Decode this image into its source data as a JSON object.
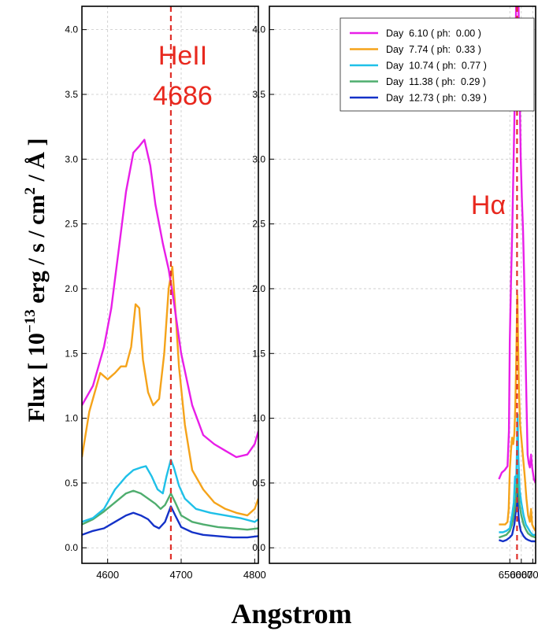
{
  "figure": {
    "ylabel_parts": [
      "Flux [ 10",
      "−13",
      " erg / s / cm",
      "2",
      " / Å ]"
    ],
    "xlabel": "Angstrom",
    "ylim": [
      -0.12,
      4.18
    ],
    "yticks": [
      0.0,
      0.5,
      1.0,
      1.5,
      2.0,
      2.5,
      3.0,
      3.5,
      4.0
    ],
    "ytick_labels": [
      "0.0",
      "0.5",
      "1.0",
      "1.5",
      "2.0",
      "2.5",
      "3.0",
      "3.5",
      "4.0"
    ],
    "grid": true,
    "legend_placement": "top-right of right panel",
    "colors": {
      "marker_line": "#e0302a",
      "annotation": "#e8281e"
    }
  },
  "chart_data": [
    {
      "type": "line",
      "panel": "left",
      "annotation": [
        "HeII",
        "4686"
      ],
      "xlim": [
        4565,
        4805
      ],
      "xticks": [
        4600,
        4700,
        4800
      ],
      "xtick_labels": [
        "4600",
        "4700",
        "4800"
      ],
      "marker_x": 4686,
      "series": [
        {
          "name": "Day  6.10 ( ph:  0.00 )",
          "color": "#e81ee8",
          "x": [
            4565,
            4580,
            4595,
            4605,
            4615,
            4625,
            4635,
            4643,
            4650,
            4658,
            4665,
            4675,
            4683,
            4690,
            4700,
            4715,
            4730,
            4745,
            4760,
            4775,
            4790,
            4800,
            4805
          ],
          "y": [
            1.1,
            1.25,
            1.55,
            1.85,
            2.3,
            2.75,
            3.05,
            3.1,
            3.15,
            2.95,
            2.65,
            2.35,
            2.15,
            1.9,
            1.5,
            1.1,
            0.87,
            0.8,
            0.75,
            0.7,
            0.72,
            0.8,
            0.9
          ]
        },
        {
          "name": "Day  7.74 ( ph:  0.33 )",
          "color": "#f5a31a",
          "x": [
            4565,
            4575,
            4590,
            4600,
            4610,
            4618,
            4625,
            4632,
            4638,
            4643,
            4648,
            4655,
            4662,
            4670,
            4677,
            4683,
            4688,
            4692,
            4697,
            4705,
            4715,
            4730,
            4745,
            4760,
            4775,
            4790,
            4800,
            4805
          ],
          "y": [
            0.7,
            1.05,
            1.35,
            1.3,
            1.35,
            1.4,
            1.4,
            1.55,
            1.88,
            1.85,
            1.45,
            1.2,
            1.1,
            1.15,
            1.5,
            2.0,
            2.17,
            1.85,
            1.4,
            0.95,
            0.6,
            0.45,
            0.35,
            0.3,
            0.27,
            0.25,
            0.3,
            0.38
          ]
        },
        {
          "name": "Day  10.74 ( ph:  0.77 )",
          "color": "#1fc0e8",
          "x": [
            4565,
            4580,
            4595,
            4610,
            4625,
            4635,
            4645,
            4652,
            4660,
            4668,
            4675,
            4680,
            4686,
            4690,
            4697,
            4705,
            4720,
            4740,
            4760,
            4780,
            4800,
            4805
          ],
          "y": [
            0.2,
            0.23,
            0.3,
            0.45,
            0.55,
            0.6,
            0.62,
            0.63,
            0.55,
            0.45,
            0.42,
            0.55,
            0.68,
            0.62,
            0.48,
            0.38,
            0.3,
            0.27,
            0.25,
            0.23,
            0.2,
            0.22
          ]
        },
        {
          "name": "Day  11.38 ( ph:  0.29 )",
          "color": "#4fad6e",
          "x": [
            4565,
            4580,
            4595,
            4610,
            4625,
            4635,
            4645,
            4655,
            4665,
            4672,
            4678,
            4686,
            4692,
            4700,
            4715,
            4730,
            4750,
            4770,
            4790,
            4805
          ],
          "y": [
            0.18,
            0.22,
            0.28,
            0.35,
            0.42,
            0.44,
            0.42,
            0.38,
            0.34,
            0.3,
            0.33,
            0.42,
            0.35,
            0.25,
            0.2,
            0.18,
            0.16,
            0.15,
            0.14,
            0.15
          ]
        },
        {
          "name": "Day  12.73 ( ph:  0.39 )",
          "color": "#1432c8",
          "x": [
            4565,
            4580,
            4595,
            4610,
            4625,
            4635,
            4645,
            4655,
            4663,
            4670,
            4678,
            4686,
            4692,
            4700,
            4715,
            4730,
            4750,
            4770,
            4790,
            4805
          ],
          "y": [
            0.1,
            0.13,
            0.15,
            0.2,
            0.25,
            0.27,
            0.25,
            0.22,
            0.17,
            0.15,
            0.2,
            0.32,
            0.25,
            0.16,
            0.12,
            0.1,
            0.09,
            0.08,
            0.08,
            0.09
          ]
        }
      ]
    },
    {
      "type": "line",
      "panel": "right",
      "annotation": [
        "Hα"
      ],
      "xlim": [
        4405,
        6725
      ],
      "xticks": [
        6500,
        6600,
        6700
      ],
      "xtick_labels": [
        "6500",
        "6600",
        "6700"
      ],
      "marker_x": 6563,
      "series": [
        {
          "name": "Day  6.10 ( ph:  0.00 )",
          "color": "#e81ee8",
          "x": [
            6405,
            6430,
            6455,
            6480,
            6492,
            6500,
            6510,
            6520,
            6530,
            6540,
            6550,
            6556,
            6575,
            6585,
            6595,
            6605,
            6615,
            6625,
            6635,
            6645,
            6655,
            6665,
            6675,
            6685,
            6695,
            6710,
            6725
          ],
          "y": [
            0.53,
            0.58,
            0.6,
            0.63,
            0.9,
            1.6,
            2.05,
            2.4,
            2.85,
            3.3,
            3.8,
            4.3,
            4.3,
            3.55,
            3.0,
            2.7,
            2.45,
            2.1,
            1.6,
            1.15,
            0.72,
            0.65,
            0.62,
            0.72,
            0.62,
            0.53,
            0.5
          ]
        },
        {
          "name": "Day  7.74 ( ph:  0.33 )",
          "color": "#f5a31a",
          "x": [
            6405,
            6430,
            6460,
            6480,
            6490,
            6500,
            6510,
            6520,
            6530,
            6540,
            6548,
            6556,
            6562,
            6566,
            6572,
            6580,
            6590,
            6600,
            6615,
            6630,
            6645,
            6660,
            6675,
            6685,
            6695,
            6710,
            6725
          ],
          "y": [
            0.18,
            0.18,
            0.18,
            0.2,
            0.3,
            0.6,
            0.75,
            0.85,
            0.8,
            0.88,
            1.1,
            1.45,
            1.8,
            1.95,
            1.6,
            1.2,
            0.95,
            0.85,
            0.7,
            0.55,
            0.38,
            0.25,
            0.2,
            0.3,
            0.18,
            0.15,
            0.13
          ]
        },
        {
          "name": "Day  10.74 ( ph:  0.77 )",
          "color": "#1fc0e8",
          "x": [
            6405,
            6440,
            6470,
            6500,
            6520,
            6535,
            6545,
            6555,
            6562,
            6568,
            6575,
            6585,
            6600,
            6620,
            6640,
            6660,
            6680,
            6700,
            6725
          ],
          "y": [
            0.12,
            0.12,
            0.13,
            0.15,
            0.25,
            0.35,
            0.55,
            0.5,
            0.75,
            1.03,
            0.7,
            0.45,
            0.35,
            0.25,
            0.18,
            0.15,
            0.12,
            0.1,
            0.1
          ]
        },
        {
          "name": "Day  11.38 ( ph:  0.29 )",
          "color": "#4fad6e",
          "x": [
            6405,
            6440,
            6470,
            6500,
            6520,
            6540,
            6552,
            6560,
            6567,
            6575,
            6585,
            6600,
            6620,
            6640,
            6660,
            6690,
            6725
          ],
          "y": [
            0.08,
            0.09,
            0.1,
            0.13,
            0.18,
            0.28,
            0.38,
            0.5,
            0.6,
            0.45,
            0.33,
            0.25,
            0.18,
            0.14,
            0.11,
            0.09,
            0.08
          ]
        },
        {
          "name": "Day  12.73 ( ph:  0.39 )",
          "color": "#1432c8",
          "x": [
            6405,
            6440,
            6470,
            6500,
            6520,
            6540,
            6552,
            6560,
            6566,
            6572,
            6580,
            6595,
            6620,
            6640,
            6660,
            6690,
            6725
          ],
          "y": [
            0.06,
            0.05,
            0.06,
            0.08,
            0.1,
            0.18,
            0.28,
            0.38,
            0.45,
            0.3,
            0.2,
            0.13,
            0.09,
            0.07,
            0.06,
            0.05,
            0.05
          ]
        }
      ]
    }
  ]
}
